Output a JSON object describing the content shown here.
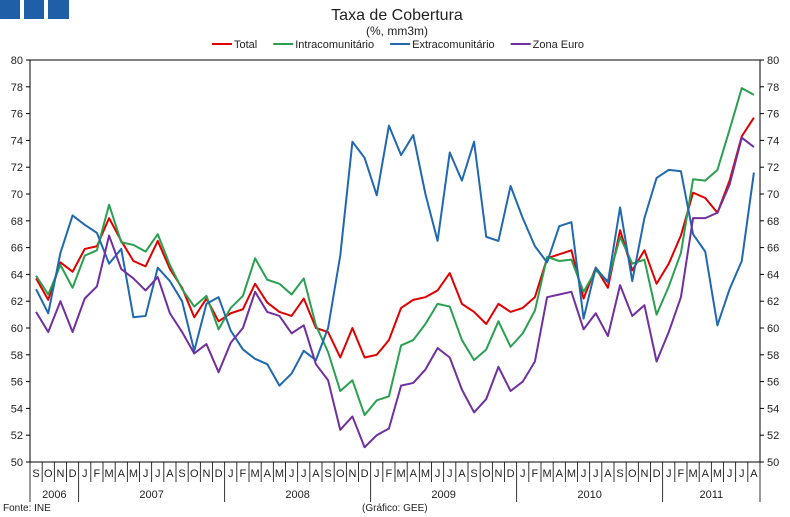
{
  "header": {
    "logo_icon": "three-blue-squares-icon",
    "logo_color": "#1f5fa8"
  },
  "footer": {
    "source": "Fonte: INE",
    "credit": "(Gráfico: GEE)"
  },
  "chart_data": {
    "type": "line",
    "title": "Taxa de Cobertura",
    "subtitle": "(%, mm3m)",
    "xlabel": "",
    "ylabel": "",
    "ylim": [
      50,
      80
    ],
    "yticks": [
      50,
      52,
      54,
      56,
      58,
      60,
      62,
      64,
      66,
      68,
      70,
      72,
      74,
      76,
      78,
      80
    ],
    "grid": false,
    "legend_position": "top",
    "months": [
      "S",
      "O",
      "N",
      "D",
      "J",
      "F",
      "M",
      "A",
      "M",
      "J",
      "J",
      "A",
      "S",
      "O",
      "N",
      "D",
      "J",
      "F",
      "M",
      "A",
      "M",
      "J",
      "J",
      "A",
      "S",
      "O",
      "N",
      "D",
      "J",
      "F",
      "M",
      "A",
      "M",
      "J",
      "J",
      "A",
      "S",
      "O",
      "N",
      "D",
      "J",
      "F",
      "M",
      "A",
      "M",
      "J",
      "J",
      "A",
      "S",
      "O",
      "N",
      "D",
      "J",
      "F",
      "M",
      "A",
      "M",
      "J",
      "J",
      "A"
    ],
    "years": [
      {
        "label": "2006",
        "start": 0,
        "end": 3
      },
      {
        "label": "2007",
        "start": 4,
        "end": 15
      },
      {
        "label": "2008",
        "start": 16,
        "end": 27
      },
      {
        "label": "2009",
        "start": 28,
        "end": 39
      },
      {
        "label": "2010",
        "start": 40,
        "end": 51
      },
      {
        "label": "2011",
        "start": 52,
        "end": 59
      }
    ],
    "series": [
      {
        "name": "Total",
        "color": "#e00000",
        "values": [
          63.7,
          62.1,
          64.9,
          64.2,
          65.9,
          66.1,
          68.2,
          66.5,
          65.0,
          64.6,
          66.5,
          64.4,
          63.0,
          60.8,
          62.2,
          60.5,
          61.1,
          61.4,
          63.3,
          61.9,
          61.2,
          60.9,
          62.2,
          60.0,
          59.7,
          57.8,
          60.0,
          57.8,
          58.0,
          59.1,
          61.5,
          62.1,
          62.3,
          62.8,
          64.1,
          61.8,
          61.2,
          60.3,
          61.8,
          61.2,
          61.5,
          62.3,
          65.2,
          65.5,
          65.8,
          62.2,
          64.5,
          63.0,
          67.3,
          64.3,
          65.8,
          63.3,
          64.8,
          66.9,
          70.1,
          69.7,
          68.6,
          71.0,
          74.3,
          75.7
        ]
      },
      {
        "name": "Intracomunitário",
        "color": "#2aa050",
        "values": [
          63.9,
          62.5,
          64.7,
          63.0,
          65.4,
          65.8,
          69.2,
          66.4,
          66.2,
          65.7,
          67.0,
          64.7,
          62.9,
          61.6,
          62.4,
          59.9,
          61.5,
          62.4,
          65.2,
          63.6,
          63.3,
          62.5,
          63.7,
          60.2,
          58.2,
          55.3,
          56.1,
          53.5,
          54.6,
          54.9,
          58.7,
          59.1,
          60.3,
          61.8,
          61.6,
          59.1,
          57.6,
          58.4,
          60.5,
          58.6,
          59.6,
          61.3,
          65.3,
          65.0,
          65.1,
          62.7,
          64.3,
          63.5,
          66.8,
          64.8,
          65.1,
          61.0,
          63.1,
          65.6,
          71.1,
          71.0,
          71.8,
          74.8,
          77.9,
          77.4
        ]
      },
      {
        "name": "Extracomunitário",
        "color": "#2068b0",
        "values": [
          62.9,
          61.1,
          65.6,
          68.4,
          67.7,
          67.1,
          64.8,
          65.9,
          60.8,
          60.9,
          64.5,
          63.5,
          62.0,
          58.3,
          61.8,
          62.3,
          59.8,
          58.4,
          57.7,
          57.3,
          55.7,
          56.6,
          58.3,
          57.6,
          60.0,
          65.4,
          73.9,
          72.7,
          69.9,
          75.1,
          72.9,
          74.4,
          70.0,
          66.5,
          73.1,
          71.0,
          73.9,
          66.8,
          66.5,
          70.6,
          68.2,
          66.1,
          64.9,
          67.6,
          67.9,
          60.7,
          64.5,
          63.4,
          69.0,
          63.5,
          68.2,
          71.2,
          71.8,
          71.7,
          67.0,
          65.7,
          60.2,
          62.9,
          65.0,
          71.6
        ]
      },
      {
        "name": "Zona Euro",
        "color": "#7030a0",
        "values": [
          61.2,
          59.7,
          62.0,
          59.7,
          62.2,
          63.1,
          66.9,
          64.4,
          63.7,
          62.8,
          63.8,
          61.1,
          59.7,
          58.1,
          58.8,
          56.7,
          58.9,
          60.0,
          62.7,
          61.2,
          60.9,
          59.6,
          60.2,
          57.3,
          56.1,
          52.4,
          53.4,
          51.1,
          52.0,
          52.5,
          55.7,
          55.9,
          56.9,
          58.5,
          57.8,
          55.4,
          53.7,
          54.7,
          57.1,
          55.3,
          56.0,
          57.5,
          62.3,
          62.5,
          62.7,
          59.9,
          61.1,
          59.4,
          63.2,
          60.9,
          61.7,
          57.5,
          59.7,
          62.3,
          68.2,
          68.2,
          68.6,
          70.7,
          74.2,
          73.5
        ]
      }
    ]
  }
}
